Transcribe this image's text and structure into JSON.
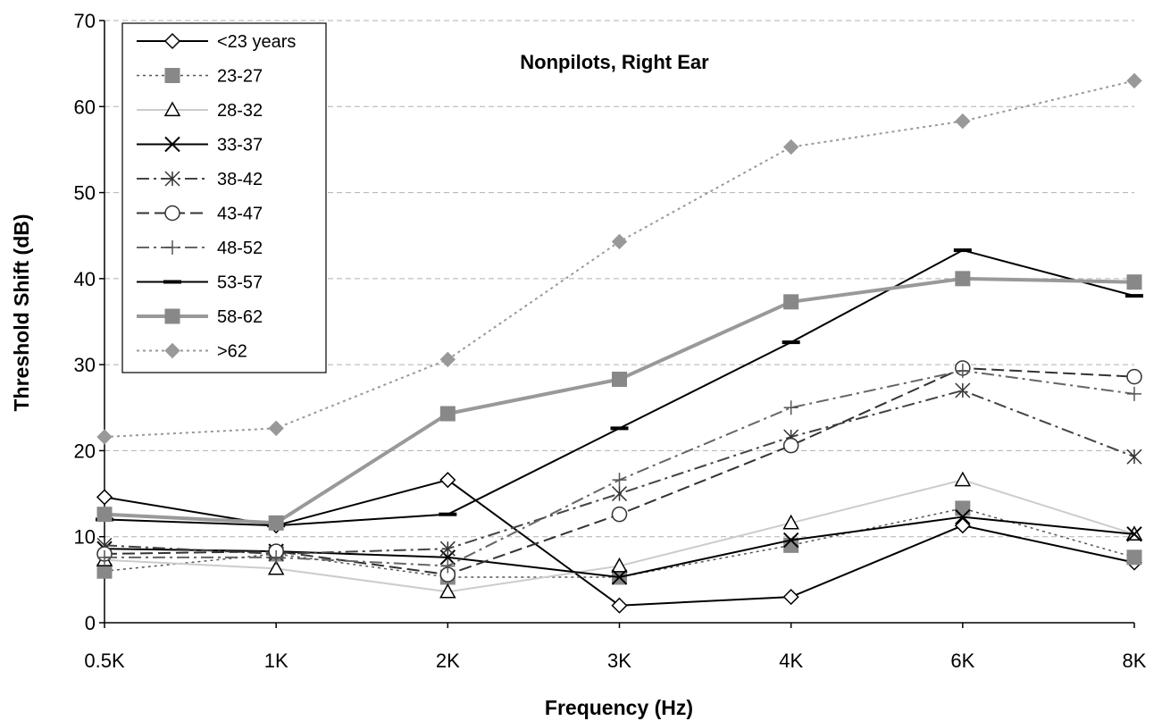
{
  "chart_data": {
    "type": "line",
    "title": "Nonpilots, Right Ear",
    "xlabel": "Frequency (Hz)",
    "ylabel": "Threshold Shift (dB)",
    "categories": [
      "0.5K",
      "1K",
      "2K",
      "3K",
      "4K",
      "6K",
      "8K"
    ],
    "ylim": [
      0,
      70
    ],
    "yticks": [
      0,
      10,
      20,
      30,
      40,
      50,
      60,
      70
    ],
    "grid": "horizontal dashed",
    "legend_position": "top-left",
    "series": [
      {
        "name": "<23 years",
        "values": [
          14.6,
          11.3,
          16.6,
          2.0,
          3.0,
          11.3,
          7.0
        ],
        "color": "#000000",
        "dash": "solid",
        "width": 2,
        "marker": "diamond-open"
      },
      {
        "name": "23-27",
        "values": [
          6.0,
          8.0,
          5.3,
          5.3,
          9.0,
          13.3,
          7.6
        ],
        "color": "#555555",
        "dash": "dotted",
        "width": 1.5,
        "marker": "square-filled"
      },
      {
        "name": "28-32",
        "values": [
          7.3,
          6.3,
          3.6,
          6.6,
          11.6,
          16.6,
          10.3
        ],
        "color": "#cccccc",
        "dash": "solid",
        "width": 2,
        "marker": "triangle-open"
      },
      {
        "name": "33-37",
        "values": [
          8.6,
          8.3,
          7.6,
          5.3,
          9.6,
          12.3,
          10.3
        ],
        "color": "#000000",
        "dash": "solid",
        "width": 2,
        "marker": "x"
      },
      {
        "name": "38-42",
        "values": [
          9.0,
          8.0,
          8.6,
          15.0,
          21.6,
          27.0,
          19.3
        ],
        "color": "#444444",
        "dash": "dashdot",
        "width": 2,
        "marker": "asterisk"
      },
      {
        "name": "43-47",
        "values": [
          8.0,
          8.3,
          5.6,
          12.6,
          20.6,
          29.6,
          28.6
        ],
        "color": "#333333",
        "dash": "dashed",
        "width": 2,
        "marker": "circle-open"
      },
      {
        "name": "48-52",
        "values": [
          7.6,
          7.6,
          6.6,
          16.6,
          25.0,
          29.3,
          26.6
        ],
        "color": "#666666",
        "dash": "dashdot",
        "width": 2,
        "marker": "plus"
      },
      {
        "name": "53-57",
        "values": [
          12.0,
          11.3,
          12.6,
          22.6,
          32.6,
          43.3,
          38.0
        ],
        "color": "#000000",
        "dash": "solid",
        "width": 2,
        "marker": "dash"
      },
      {
        "name": "58-62",
        "values": [
          12.6,
          11.6,
          24.3,
          28.3,
          37.3,
          40.0,
          39.6
        ],
        "color": "#999999",
        "dash": "solid",
        "width": 4,
        "marker": "square-filled"
      },
      {
        "name": ">62",
        "values": [
          21.6,
          22.6,
          30.6,
          44.3,
          55.3,
          58.3,
          63.0
        ],
        "color": "#999999",
        "dash": "dotted",
        "width": 2,
        "marker": "diamond-filled"
      }
    ]
  }
}
